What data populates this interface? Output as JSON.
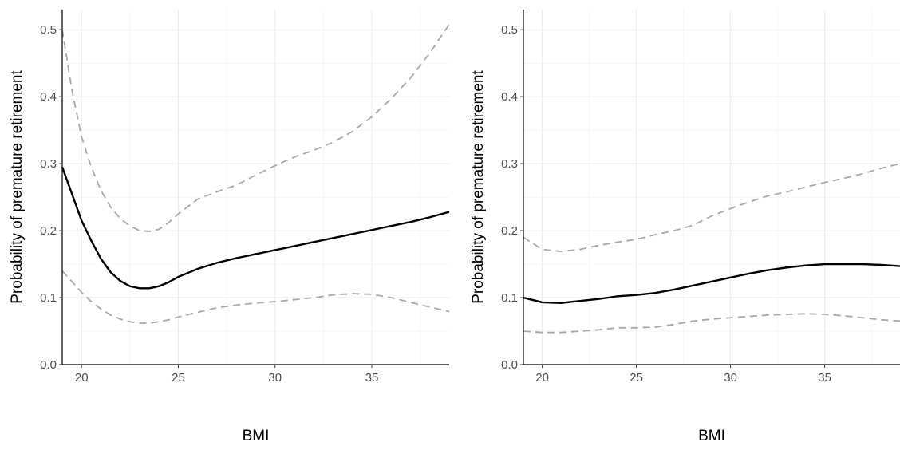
{
  "chart_data": [
    {
      "type": "line",
      "xlabel": "BMI",
      "ylabel": "Probability of premature retirement",
      "xlim": [
        19,
        39
      ],
      "ylim": [
        0,
        0.53
      ],
      "xticks": [
        20,
        25,
        30,
        35
      ],
      "yticks": [
        0.0,
        0.1,
        0.2,
        0.3,
        0.4,
        0.5
      ],
      "ytick_labels": [
        "0.0",
        "0.1",
        "0.2",
        "0.3",
        "0.4",
        "0.5"
      ],
      "xtick_labels": [
        "20",
        "25",
        "30",
        "35"
      ],
      "grid": true,
      "series": [
        {
          "role": "estimate",
          "color": "#000000",
          "style": "solid",
          "x": [
            19,
            19.5,
            20,
            20.5,
            21,
            21.5,
            22,
            22.5,
            23,
            23.5,
            24,
            24.5,
            25,
            26,
            27,
            28,
            29,
            30,
            31,
            32,
            33,
            34,
            35,
            36,
            37,
            38,
            39
          ],
          "y": [
            0.295,
            0.255,
            0.215,
            0.185,
            0.158,
            0.138,
            0.125,
            0.117,
            0.114,
            0.114,
            0.117,
            0.123,
            0.131,
            0.143,
            0.152,
            0.159,
            0.165,
            0.171,
            0.177,
            0.183,
            0.189,
            0.195,
            0.201,
            0.207,
            0.213,
            0.22,
            0.228
          ]
        },
        {
          "role": "upper",
          "color": "#a8a8a8",
          "style": "dashed",
          "x": [
            19,
            19.5,
            20,
            20.5,
            21,
            21.5,
            22,
            22.5,
            23,
            23.5,
            24,
            24.5,
            25,
            26,
            27,
            28,
            29,
            30,
            31,
            32,
            33,
            34,
            35,
            36,
            37,
            38,
            39
          ],
          "y": [
            0.5,
            0.41,
            0.34,
            0.295,
            0.26,
            0.235,
            0.218,
            0.207,
            0.2,
            0.199,
            0.202,
            0.212,
            0.225,
            0.247,
            0.258,
            0.268,
            0.283,
            0.297,
            0.31,
            0.32,
            0.332,
            0.348,
            0.37,
            0.397,
            0.428,
            0.465,
            0.508
          ]
        },
        {
          "role": "lower",
          "color": "#a8a8a8",
          "style": "dashed",
          "x": [
            19,
            19.5,
            20,
            20.5,
            21,
            21.5,
            22,
            22.5,
            23,
            23.5,
            24,
            24.5,
            25,
            26,
            27,
            28,
            29,
            30,
            31,
            32,
            33,
            34,
            35,
            36,
            37,
            38,
            39
          ],
          "y": [
            0.14,
            0.124,
            0.108,
            0.094,
            0.083,
            0.074,
            0.068,
            0.064,
            0.062,
            0.062,
            0.064,
            0.067,
            0.071,
            0.078,
            0.085,
            0.089,
            0.092,
            0.094,
            0.097,
            0.1,
            0.104,
            0.106,
            0.105,
            0.1,
            0.093,
            0.086,
            0.079
          ]
        }
      ]
    },
    {
      "type": "line",
      "xlabel": "BMI",
      "ylabel": "Probability of premature retirement",
      "xlim": [
        19,
        39
      ],
      "ylim": [
        0,
        0.53
      ],
      "xticks": [
        20,
        25,
        30,
        35
      ],
      "yticks": [
        0.0,
        0.1,
        0.2,
        0.3,
        0.4,
        0.5
      ],
      "ytick_labels": [
        "0.0",
        "0.1",
        "0.2",
        "0.3",
        "0.4",
        "0.5"
      ],
      "xtick_labels": [
        "20",
        "25",
        "30",
        "35"
      ],
      "grid": true,
      "series": [
        {
          "role": "estimate",
          "color": "#000000",
          "style": "solid",
          "x": [
            19,
            20,
            21,
            22,
            23,
            24,
            25,
            26,
            27,
            28,
            29,
            30,
            31,
            32,
            33,
            34,
            35,
            36,
            37,
            38,
            39
          ],
          "y": [
            0.1,
            0.093,
            0.092,
            0.095,
            0.098,
            0.102,
            0.104,
            0.107,
            0.112,
            0.118,
            0.124,
            0.13,
            0.136,
            0.141,
            0.145,
            0.148,
            0.15,
            0.15,
            0.15,
            0.149,
            0.147
          ]
        },
        {
          "role": "upper",
          "color": "#a8a8a8",
          "style": "dashed",
          "x": [
            19,
            20,
            21,
            22,
            23,
            24,
            25,
            26,
            27,
            28,
            29,
            30,
            31,
            32,
            33,
            34,
            35,
            36,
            37,
            38,
            39
          ],
          "y": [
            0.19,
            0.172,
            0.169,
            0.172,
            0.178,
            0.183,
            0.187,
            0.194,
            0.2,
            0.208,
            0.222,
            0.233,
            0.243,
            0.252,
            0.258,
            0.265,
            0.272,
            0.278,
            0.285,
            0.293,
            0.3
          ]
        },
        {
          "role": "lower",
          "color": "#a8a8a8",
          "style": "dashed",
          "x": [
            19,
            20,
            21,
            22,
            23,
            24,
            25,
            26,
            27,
            28,
            29,
            30,
            31,
            32,
            33,
            34,
            35,
            36,
            37,
            38,
            39
          ],
          "y": [
            0.05,
            0.048,
            0.048,
            0.05,
            0.052,
            0.055,
            0.055,
            0.056,
            0.06,
            0.065,
            0.068,
            0.07,
            0.072,
            0.074,
            0.075,
            0.076,
            0.075,
            0.073,
            0.07,
            0.067,
            0.065
          ]
        }
      ]
    }
  ]
}
